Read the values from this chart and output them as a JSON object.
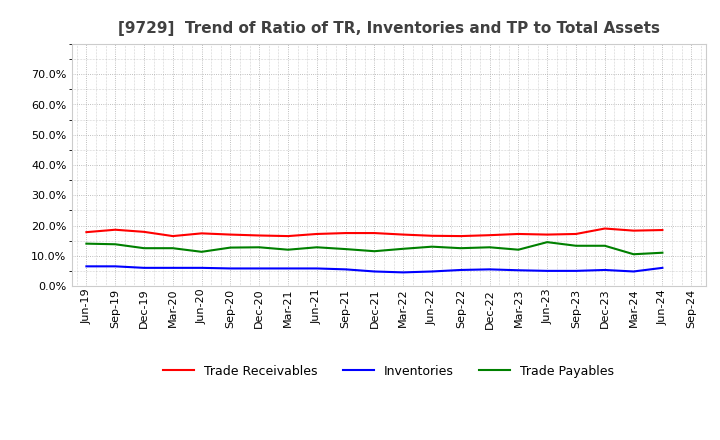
{
  "title": "[9729]  Trend of Ratio of TR, Inventories and TP to Total Assets",
  "x_labels": [
    "Jun-19",
    "Sep-19",
    "Dec-19",
    "Mar-20",
    "Jun-20",
    "Sep-20",
    "Dec-20",
    "Mar-21",
    "Jun-21",
    "Sep-21",
    "Dec-21",
    "Mar-22",
    "Jun-22",
    "Sep-22",
    "Dec-22",
    "Mar-23",
    "Jun-23",
    "Sep-23",
    "Dec-23",
    "Mar-24",
    "Jun-24",
    "Sep-24"
  ],
  "trade_receivables": [
    0.178,
    0.186,
    0.179,
    0.165,
    0.174,
    0.17,
    0.167,
    0.165,
    0.172,
    0.175,
    0.175,
    0.17,
    0.166,
    0.165,
    0.168,
    0.172,
    0.17,
    0.172,
    0.19,
    0.183,
    0.185,
    null
  ],
  "inventories": [
    0.065,
    0.065,
    0.06,
    0.06,
    0.06,
    0.058,
    0.058,
    0.058,
    0.058,
    0.055,
    0.048,
    0.045,
    0.048,
    0.053,
    0.055,
    0.052,
    0.05,
    0.05,
    0.053,
    0.048,
    0.06,
    null
  ],
  "trade_payables": [
    0.14,
    0.138,
    0.125,
    0.125,
    0.113,
    0.127,
    0.128,
    0.12,
    0.128,
    0.122,
    0.115,
    0.123,
    0.13,
    0.125,
    0.128,
    0.12,
    0.145,
    0.133,
    0.133,
    0.105,
    0.11,
    null
  ],
  "tr_color": "#ff0000",
  "inv_color": "#0000ff",
  "tp_color": "#008000",
  "ylim": [
    0.0,
    0.8
  ],
  "yticks": [
    0.0,
    0.1,
    0.2,
    0.3,
    0.4,
    0.5,
    0.6,
    0.7
  ],
  "legend_labels": [
    "Trade Receivables",
    "Inventories",
    "Trade Payables"
  ],
  "bg_color": "#ffffff",
  "plot_bg_color": "#ffffff",
  "title_color": "#404040",
  "grid_color": "#aaaaaa",
  "title_fontsize": 11,
  "tick_fontsize": 8,
  "legend_fontsize": 9,
  "linewidth": 1.5
}
